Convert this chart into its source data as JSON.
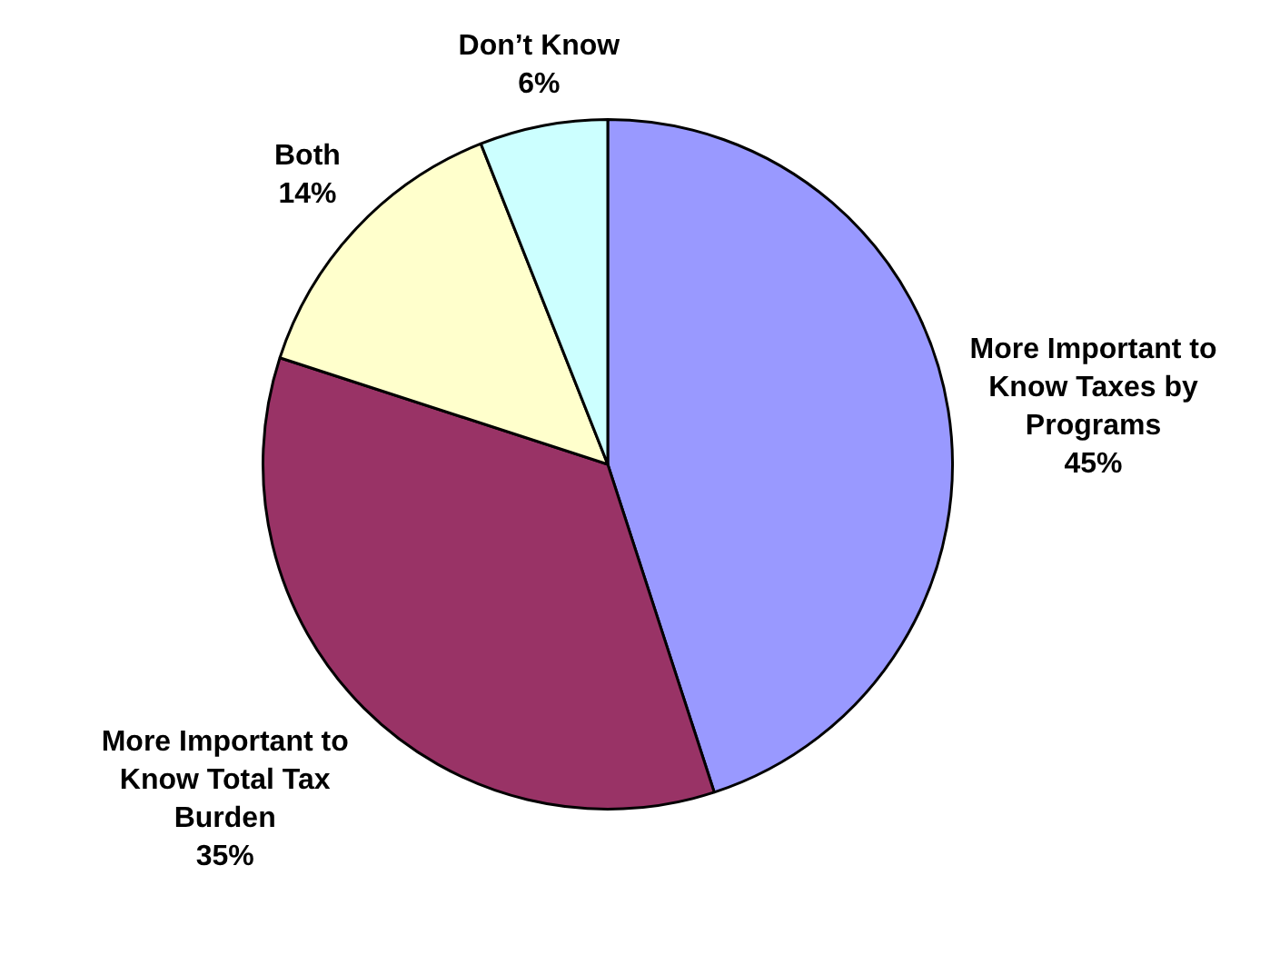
{
  "chart_data": {
    "type": "pie",
    "categories": [
      "More Important to Know Taxes by Programs",
      "More Important to Know Total Tax Burden",
      "Both",
      "Don’t Know"
    ],
    "values": [
      45,
      35,
      14,
      6
    ],
    "colors": [
      "#9999ff",
      "#993366",
      "#ffffcc",
      "#ccffff"
    ],
    "value_labels": [
      "45%",
      "35%",
      "14%",
      "6%"
    ],
    "legend": false
  }
}
